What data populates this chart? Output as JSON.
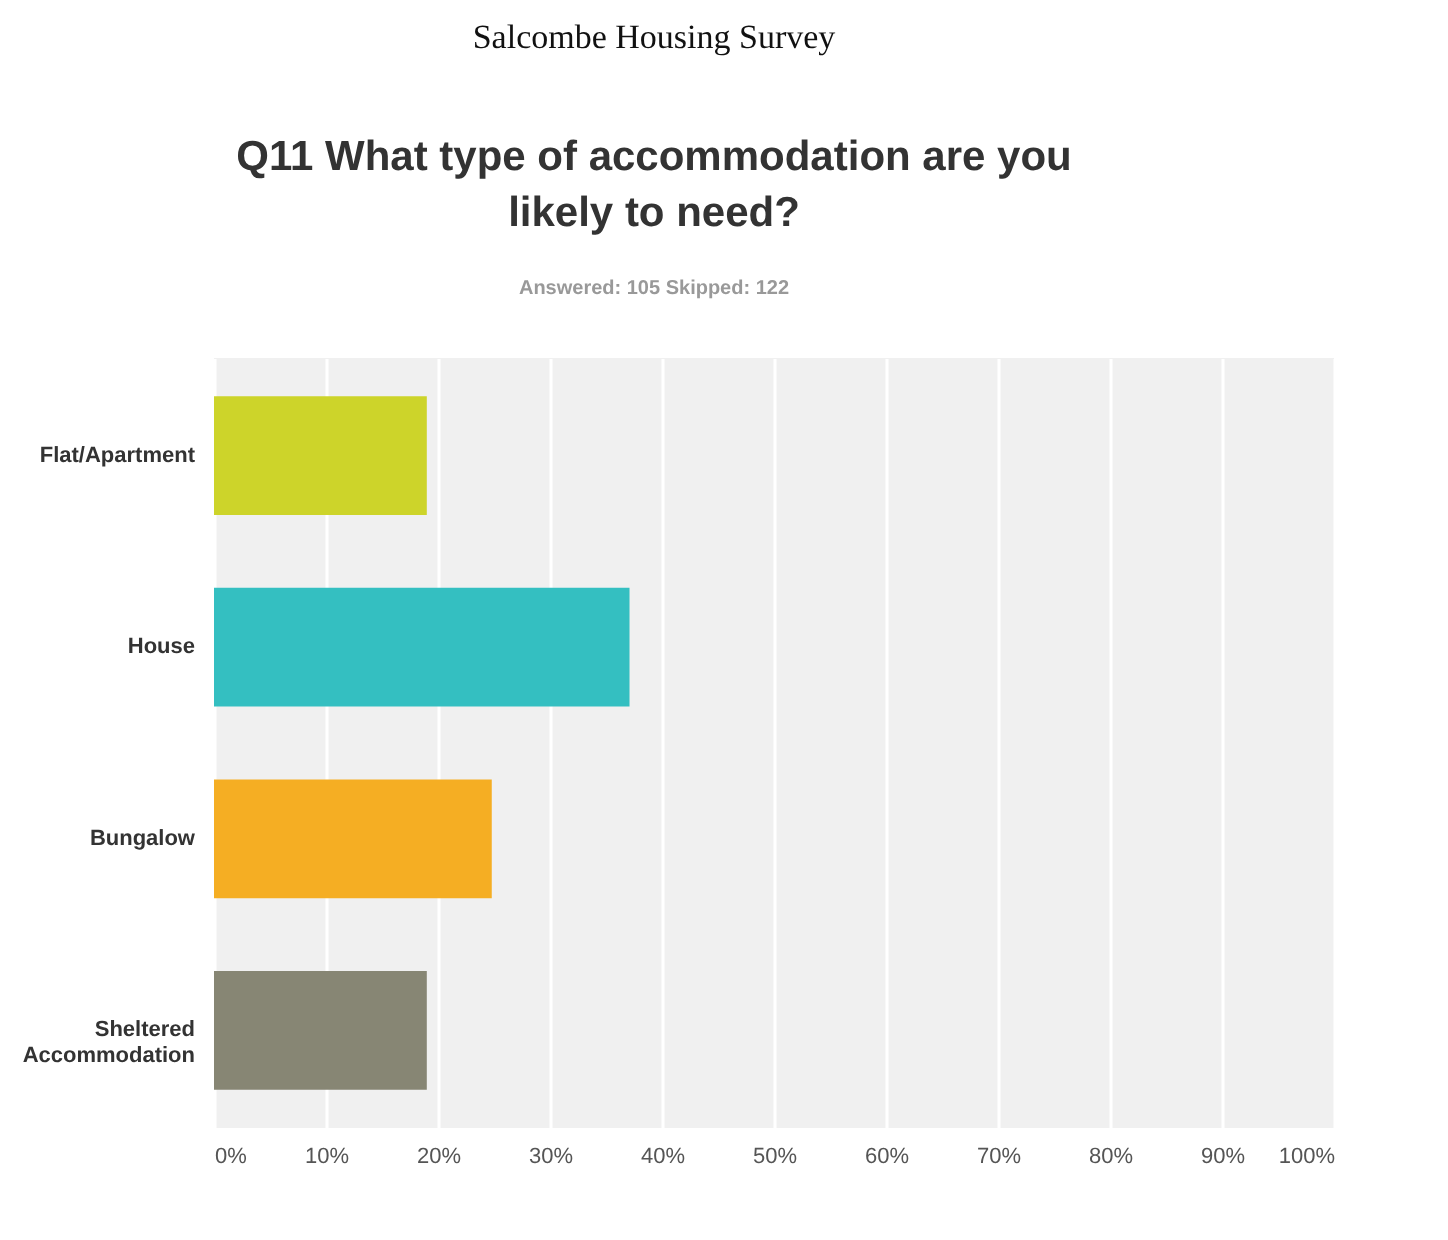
{
  "chart_data": {
    "type": "bar",
    "orientation": "horizontal",
    "title": "Salcombe Housing Survey",
    "subtitle": "Q11 What type of accommodation are you likely to need?",
    "annotations": [
      "Answered: 105    Skipped: 122"
    ],
    "categories": [
      "Flat/Apartment",
      "House",
      "Bungalow",
      "Sheltered Accommodation"
    ],
    "values": [
      19.0,
      37.1,
      24.8,
      19.0
    ],
    "colors": [
      "#cdd42a",
      "#34bfc1",
      "#f5ae23",
      "#878674"
    ],
    "xlim": [
      0,
      100
    ],
    "xticks": [
      {
        "value": 0,
        "label": "0%"
      },
      {
        "value": 10,
        "label": "10%"
      },
      {
        "value": 20,
        "label": "20%"
      },
      {
        "value": 30,
        "label": "30%"
      },
      {
        "value": 40,
        "label": "40%"
      },
      {
        "value": 50,
        "label": "50%"
      },
      {
        "value": 60,
        "label": "60%"
      },
      {
        "value": 70,
        "label": "70%"
      },
      {
        "value": 80,
        "label": "80%"
      },
      {
        "value": 90,
        "label": "90%"
      },
      {
        "value": 100,
        "label": "100%"
      }
    ],
    "grid": "x"
  }
}
